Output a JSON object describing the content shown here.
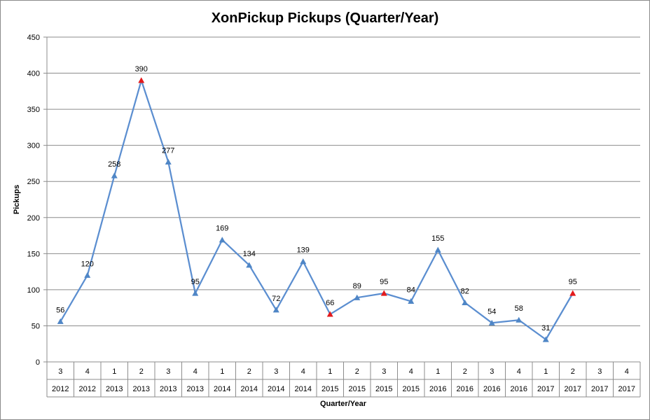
{
  "chart_data": {
    "type": "line",
    "title": "XonPickup Pickups (Quarter/Year)",
    "xlabel": "Quarter/Year",
    "ylabel": "Pickups",
    "ylim": [
      0,
      450
    ],
    "yticks": [
      0,
      50,
      100,
      150,
      200,
      250,
      300,
      350,
      400,
      450
    ],
    "grid": "horizontal",
    "categories": [
      {
        "quarter": "3",
        "year": "2012"
      },
      {
        "quarter": "4",
        "year": "2012"
      },
      {
        "quarter": "1",
        "year": "2013"
      },
      {
        "quarter": "2",
        "year": "2013"
      },
      {
        "quarter": "3",
        "year": "2013"
      },
      {
        "quarter": "4",
        "year": "2013"
      },
      {
        "quarter": "1",
        "year": "2014"
      },
      {
        "quarter": "2",
        "year": "2014"
      },
      {
        "quarter": "3",
        "year": "2014"
      },
      {
        "quarter": "4",
        "year": "2014"
      },
      {
        "quarter": "1",
        "year": "2015"
      },
      {
        "quarter": "2",
        "year": "2015"
      },
      {
        "quarter": "3",
        "year": "2015"
      },
      {
        "quarter": "4",
        "year": "2015"
      },
      {
        "quarter": "1",
        "year": "2016"
      },
      {
        "quarter": "2",
        "year": "2016"
      },
      {
        "quarter": "3",
        "year": "2016"
      },
      {
        "quarter": "4",
        "year": "2016"
      },
      {
        "quarter": "1",
        "year": "2017"
      },
      {
        "quarter": "2",
        "year": "2017"
      },
      {
        "quarter": "3",
        "year": "2017"
      },
      {
        "quarter": "4",
        "year": "2017"
      }
    ],
    "series": [
      {
        "values": [
          56,
          120,
          258,
          390,
          277,
          95,
          169,
          134,
          72,
          139,
          66,
          89,
          95,
          84,
          155,
          82,
          54,
          58,
          31,
          95,
          null,
          null
        ],
        "highlighted": [
          false,
          false,
          false,
          true,
          false,
          false,
          false,
          false,
          false,
          false,
          true,
          false,
          true,
          false,
          false,
          false,
          false,
          false,
          false,
          true,
          false,
          false
        ]
      }
    ],
    "colors": {
      "line": "#5b8ed0",
      "marker": "#4f86c6",
      "highlight_marker": "#e31a1c",
      "grid": "#8c8c8c",
      "axis": "#8c8c8c"
    }
  }
}
